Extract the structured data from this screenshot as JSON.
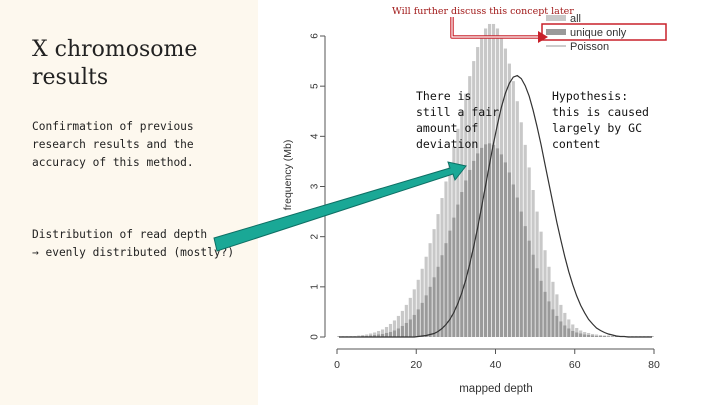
{
  "slide": {
    "title": "X chromosome results",
    "confirmation_text": "Confirmation of previous research results and the accuracy of this method.",
    "distribution_line1": "Distribution of read depth",
    "distribution_line2": "→ evenly distributed (mostly?)",
    "note_deviation": "There is still a fair amount of deviation",
    "note_hypothesis": "Hypothesis: this is caused largely by GC content",
    "note_later": "Will further discuss this concept later",
    "colors": {
      "panel": "#fdf8ee",
      "arrow": "#1aa896",
      "highlight": "#c8202a",
      "all_bars": "#c8c8c8",
      "unique_bars": "#9a9a9a"
    }
  },
  "chart_data": {
    "type": "bar",
    "xlabel": "mapped depth",
    "ylabel": "frequency (Mb)",
    "xlim": [
      0,
      80
    ],
    "ylim": [
      0,
      6
    ],
    "x_ticks": [
      "0",
      "20",
      "40",
      "60",
      "80"
    ],
    "y_ticks": [
      "0",
      "1",
      "2",
      "3",
      "4",
      "5",
      "6"
    ],
    "legend": {
      "position": "top-right",
      "entries": [
        "all",
        "unique only",
        "Poisson"
      ]
    },
    "x": [
      0,
      1,
      2,
      3,
      4,
      5,
      6,
      7,
      8,
      9,
      10,
      11,
      12,
      13,
      14,
      15,
      16,
      17,
      18,
      19,
      20,
      21,
      22,
      23,
      24,
      25,
      26,
      27,
      28,
      29,
      30,
      31,
      32,
      33,
      34,
      35,
      36,
      37,
      38,
      39,
      40,
      41,
      42,
      43,
      44,
      45,
      46,
      47,
      48,
      49,
      50,
      51,
      52,
      53,
      54,
      55,
      56,
      57,
      58,
      59,
      60,
      61,
      62,
      63,
      64,
      65,
      66,
      67,
      68,
      69,
      70,
      71,
      72,
      73,
      74,
      75,
      76,
      77,
      78,
      79
    ],
    "series": [
      {
        "name": "all",
        "kind": "bar",
        "values": [
          0.02,
          0.02,
          0.02,
          0.02,
          0.02,
          0.03,
          0.04,
          0.05,
          0.07,
          0.09,
          0.12,
          0.15,
          0.2,
          0.26,
          0.33,
          0.42,
          0.52,
          0.64,
          0.78,
          0.95,
          1.14,
          1.36,
          1.6,
          1.87,
          2.15,
          2.45,
          2.77,
          3.1,
          3.45,
          3.8,
          4.15,
          4.5,
          4.85,
          5.2,
          5.5,
          5.78,
          6.0,
          6.15,
          6.24,
          6.24,
          6.15,
          5.98,
          5.75,
          5.45,
          5.1,
          4.7,
          4.28,
          3.83,
          3.38,
          2.93,
          2.5,
          2.1,
          1.73,
          1.4,
          1.1,
          0.85,
          0.64,
          0.48,
          0.35,
          0.25,
          0.18,
          0.13,
          0.1,
          0.08,
          0.06,
          0.05,
          0.04,
          0.03,
          0.03,
          0.02,
          0.02,
          0.02,
          0.02,
          0.02,
          0.02,
          0.02,
          0.02,
          0.02,
          0.02,
          0.02
        ]
      },
      {
        "name": "unique only",
        "kind": "bar",
        "values": [
          0.01,
          0.01,
          0.01,
          0.01,
          0.01,
          0.01,
          0.02,
          0.02,
          0.03,
          0.04,
          0.05,
          0.06,
          0.08,
          0.1,
          0.13,
          0.17,
          0.22,
          0.28,
          0.35,
          0.44,
          0.55,
          0.68,
          0.83,
          1.0,
          1.19,
          1.4,
          1.63,
          1.87,
          2.12,
          2.38,
          2.64,
          2.89,
          3.12,
          3.33,
          3.51,
          3.66,
          3.77,
          3.84,
          3.86,
          3.83,
          3.76,
          3.64,
          3.48,
          3.28,
          3.04,
          2.78,
          2.5,
          2.21,
          1.92,
          1.64,
          1.37,
          1.12,
          0.9,
          0.71,
          0.55,
          0.42,
          0.31,
          0.23,
          0.17,
          0.12,
          0.09,
          0.07,
          0.05,
          0.04,
          0.03,
          0.02,
          0.02,
          0.02,
          0.01,
          0.01,
          0.01,
          0.01,
          0.01,
          0.01,
          0.01,
          0.01,
          0.01,
          0.01,
          0.01,
          0.01
        ]
      },
      {
        "name": "Poisson",
        "kind": "line",
        "values": [
          0,
          0,
          0,
          0,
          0,
          0,
          0,
          0,
          0,
          0,
          0,
          0,
          0,
          0,
          0,
          0,
          0,
          0,
          0,
          0,
          0.01,
          0.02,
          0.03,
          0.05,
          0.07,
          0.11,
          0.17,
          0.25,
          0.35,
          0.49,
          0.67,
          0.88,
          1.14,
          1.45,
          1.8,
          2.18,
          2.59,
          3.02,
          3.45,
          3.86,
          4.24,
          4.58,
          4.86,
          5.06,
          5.18,
          5.21,
          5.15,
          5.01,
          4.8,
          4.52,
          4.19,
          3.83,
          3.44,
          3.05,
          2.66,
          2.28,
          1.93,
          1.6,
          1.3,
          1.04,
          0.82,
          0.63,
          0.48,
          0.35,
          0.26,
          0.18,
          0.13,
          0.09,
          0.06,
          0.04,
          0.02,
          0.01,
          0.01,
          0,
          0,
          0,
          0,
          0,
          0,
          0
        ]
      }
    ]
  }
}
